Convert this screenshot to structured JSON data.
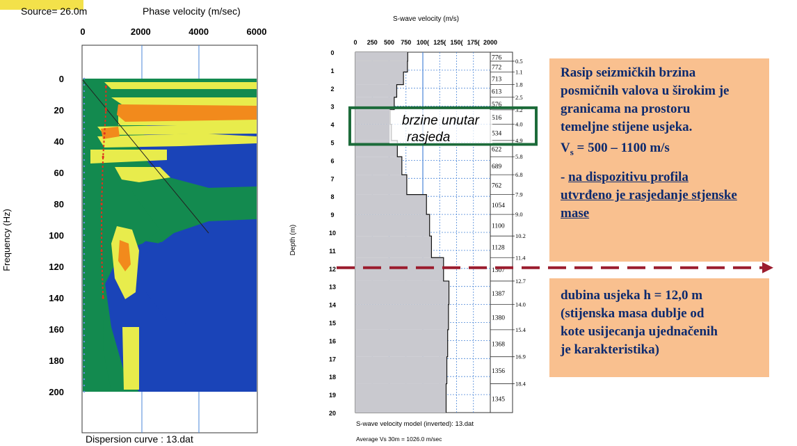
{
  "dispersion": {
    "source_label": "Source= 26.0m",
    "xlabel": "Phase velocity (m/sec)",
    "ylabel": "Frequency (Hz)",
    "x_ticks": [
      "0",
      "2000",
      "4000",
      "6000"
    ],
    "y_ticks": [
      "0",
      "20",
      "40",
      "60",
      "80",
      "100",
      "120",
      "140",
      "160",
      "180",
      "200"
    ],
    "caption": "Dispersion curve : 13.dat"
  },
  "vs_profile": {
    "title": "S-wave velocity (m/s)",
    "x_ticks": [
      "0",
      "250",
      "500",
      "750",
      "100(",
      "125(",
      "150(",
      "175(",
      "2000"
    ],
    "ylabel": "Depth (m)",
    "y_ticks": [
      "0",
      "1",
      "2",
      "3",
      "4",
      "5",
      "6",
      "7",
      "8",
      "9",
      "10",
      "11",
      "12",
      "13",
      "14",
      "15",
      "16",
      "17",
      "18",
      "19",
      "20"
    ],
    "caption": "S-wave velocity model (inverted): 13.dat",
    "average": "Average Vs 30m = 1026.0 m/sec",
    "box_label_1": "brzine unutar",
    "box_label_2": "rasjeda"
  },
  "chart_data": [
    {
      "type": "heatmap",
      "title": "",
      "xlabel": "Phase velocity (m/sec)",
      "ylabel": "Frequency (Hz)",
      "xlim": [
        0,
        6000
      ],
      "ylim": [
        200,
        0
      ],
      "colors": [
        "#1a44b8",
        "#138a4f",
        "#e8ec4c",
        "#f28a1c"
      ],
      "dispersion_curve": [
        [
          800,
          5
        ],
        [
          800,
          20
        ],
        [
          750,
          35
        ],
        [
          700,
          50
        ],
        [
          650,
          80
        ],
        [
          650,
          110
        ],
        [
          700,
          140
        ]
      ]
    },
    {
      "type": "line",
      "title": "S-wave velocity (m/s)",
      "xlabel": "",
      "ylabel": "Depth (m)",
      "xlim": [
        0,
        2000
      ],
      "ylim": [
        20,
        0
      ],
      "layers": [
        {
          "top": 0.0,
          "bottom": 0.5,
          "vs": 776
        },
        {
          "top": 0.5,
          "bottom": 1.1,
          "vs": 772
        },
        {
          "top": 1.1,
          "bottom": 1.8,
          "vs": 713
        },
        {
          "top": 1.8,
          "bottom": 2.5,
          "vs": 613
        },
        {
          "top": 2.5,
          "bottom": 3.2,
          "vs": 576
        },
        {
          "top": 3.2,
          "bottom": 4.0,
          "vs": 516
        },
        {
          "top": 4.0,
          "bottom": 4.9,
          "vs": 534
        },
        {
          "top": 4.9,
          "bottom": 5.8,
          "vs": 622
        },
        {
          "top": 5.8,
          "bottom": 6.8,
          "vs": 689
        },
        {
          "top": 6.8,
          "bottom": 7.9,
          "vs": 762
        },
        {
          "top": 7.9,
          "bottom": 9.0,
          "vs": 1054
        },
        {
          "top": 9.0,
          "bottom": 10.2,
          "vs": 1100
        },
        {
          "top": 10.2,
          "bottom": 11.4,
          "vs": 1128
        },
        {
          "top": 11.4,
          "bottom": 12.7,
          "vs": 1307
        },
        {
          "top": 12.7,
          "bottom": 14.0,
          "vs": 1387
        },
        {
          "top": 14.0,
          "bottom": 15.4,
          "vs": 1380
        },
        {
          "top": 15.4,
          "bottom": 16.9,
          "vs": 1368
        },
        {
          "top": 16.9,
          "bottom": 18.4,
          "vs": 1356
        },
        {
          "top": 18.4,
          "bottom": 20.0,
          "vs": 1345
        }
      ],
      "vs_labels": [
        "776",
        "772",
        "713",
        "613",
        "576",
        "516",
        "534",
        "622",
        "689",
        "762",
        "1054",
        "1100",
        "1128",
        "1307",
        "1387",
        "1380",
        "1368",
        "1356",
        "1345"
      ],
      "depth_labels": [
        "0.5",
        "1.1",
        "1.8",
        "2.5",
        "3.2",
        "4.0",
        "4.9",
        "5.8",
        "6.8",
        "7.9",
        "9.0",
        "10.2",
        "11.4",
        "12.7",
        "14.0",
        "15.4",
        "16.9",
        "18.4"
      ],
      "fault_box_depth": [
        3.2,
        5.0
      ],
      "cut_depth": 12.0
    }
  ],
  "callout_top": {
    "line1": "Rasip seizmičkih brzina",
    "line2": "posmičnih valova u širokim je",
    "line3": "granicama na prostoru",
    "line4": "temeljne stijene usjeka.",
    "vs_prefix": "V",
    "vs_sub": "s",
    "vs_range": " = 500 – 1100 m/s",
    "bullet_prefix": "- ",
    "bullet_1": "na dispozitivu profila",
    "bullet_2": "utvrđeno je rasjedanje stjenske",
    "bullet_3": "mase"
  },
  "callout_bottom": {
    "line1": "dubina usjeka h = 12,0 m",
    "line2": "(stijenska masa dublje od",
    "line3": "kote usijecanja  ujednačenih",
    "line4": "je karakteristika)"
  },
  "colors": {
    "callout_bg": "#f9c08f",
    "callout_text": "#0d2a6e",
    "arrow": "#9b1c2e",
    "box_border": "#1c6b3a",
    "shade": "#c9c9cf"
  }
}
